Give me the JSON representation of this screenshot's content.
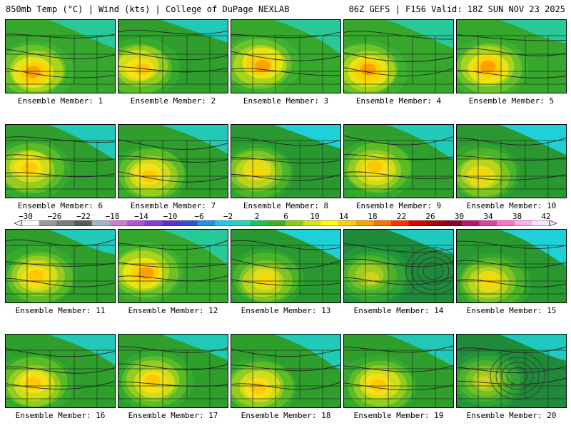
{
  "header": {
    "left": "850mb Temp (°C) | Wind (kts) | College of DuPage NEXLAB",
    "right": "06Z GEFS | F156 Valid: 18Z SUN NOV 23 2025"
  },
  "members": [
    {
      "label": "Ensemble Member: 1",
      "style": "warm"
    },
    {
      "label": "Ensemble Member: 2",
      "style": "mid"
    },
    {
      "label": "Ensemble Member: 3",
      "style": "warm"
    },
    {
      "label": "Ensemble Member: 4",
      "style": "warm"
    },
    {
      "label": "Ensemble Member: 5",
      "style": "warm"
    },
    {
      "label": "Ensemble Member: 6",
      "style": "mid"
    },
    {
      "label": "Ensemble Member: 7",
      "style": "mid"
    },
    {
      "label": "Ensemble Member: 8",
      "style": "cool"
    },
    {
      "label": "Ensemble Member: 9",
      "style": "mid"
    },
    {
      "label": "Ensemble Member: 10",
      "style": "cool"
    },
    {
      "label": "Ensemble Member: 11",
      "style": "mid"
    },
    {
      "label": "Ensemble Member: 12",
      "style": "warm"
    },
    {
      "label": "Ensemble Member: 13",
      "style": "cool"
    },
    {
      "label": "Ensemble Member: 14",
      "style": "cold"
    },
    {
      "label": "Ensemble Member: 15",
      "style": "cool"
    },
    {
      "label": "Ensemble Member: 16",
      "style": "mid"
    },
    {
      "label": "Ensemble Member: 17",
      "style": "mid"
    },
    {
      "label": "Ensemble Member: 18",
      "style": "mid"
    },
    {
      "label": "Ensemble Member: 19",
      "style": "mid"
    },
    {
      "label": "Ensemble Member: 20",
      "style": "cold"
    }
  ],
  "colorbar": {
    "labels": [
      "−30",
      "−26",
      "−22",
      "−18",
      "−14",
      "−10",
      "−6",
      "−2",
      "2",
      "6",
      "10",
      "14",
      "18",
      "22",
      "26",
      "30",
      "34",
      "38",
      "42"
    ],
    "colors": [
      "#ffffff",
      "#9a9a9a",
      "#7a7a7a",
      "#5a5a5a",
      "#9fb4c8",
      "#d27ad2",
      "#b450dc",
      "#8c3cdc",
      "#5a32c8",
      "#3050d8",
      "#2090f0",
      "#20c8f0",
      "#20d8b0",
      "#20c060",
      "#40b020",
      "#90c818",
      "#d8e010",
      "#ffff00",
      "#ffd000",
      "#ffa000",
      "#ff7000",
      "#ff3000",
      "#e00000",
      "#b00000",
      "#900020",
      "#c01070",
      "#e040a0",
      "#ff70d0",
      "#ffb0f0",
      "#ffe0ff"
    ]
  }
}
